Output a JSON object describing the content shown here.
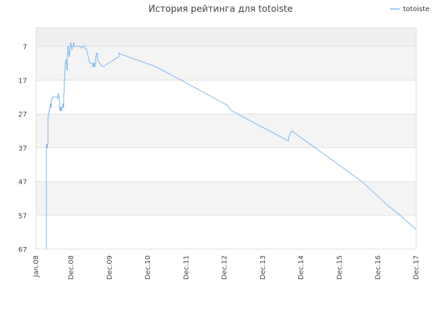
{
  "chart_data": {
    "type": "line",
    "title": "История рейтинга для totoiste",
    "xlabel": "",
    "ylabel": "",
    "y_inverted": true,
    "ylim": [
      67,
      1.5
    ],
    "xlim": [
      "2008-01-01",
      "2017-12-01"
    ],
    "y_ticks": [
      "7",
      "17",
      "27",
      "37",
      "47",
      "57",
      "67"
    ],
    "x_ticks": [
      {
        "label": "Jan.08",
        "date": "2008-01-01"
      },
      {
        "label": "Dec.08",
        "date": "2008-12-01"
      },
      {
        "label": "Dec.09",
        "date": "2009-12-01"
      },
      {
        "label": "Dec.10",
        "date": "2010-12-01"
      },
      {
        "label": "Dec.11",
        "date": "2011-12-01"
      },
      {
        "label": "Dec.12",
        "date": "2012-12-01"
      },
      {
        "label": "Dec.13",
        "date": "2013-12-01"
      },
      {
        "label": "Dec.14",
        "date": "2014-12-01"
      },
      {
        "label": "Dec.15",
        "date": "2015-12-01"
      },
      {
        "label": "Dec.16",
        "date": "2016-12-01"
      },
      {
        "label": "Dec.17",
        "date": "2017-12-01"
      }
    ],
    "legend_position": "top-right",
    "grid": true,
    "series": [
      {
        "name": "totoiste",
        "color": "#7cb5ec",
        "points": [
          [
            "2008-04-08",
            67
          ],
          [
            "2008-04-08",
            36
          ],
          [
            "2008-04-13",
            36
          ],
          [
            "2008-04-13",
            37
          ],
          [
            "2008-04-18",
            37
          ],
          [
            "2008-04-18",
            36
          ],
          [
            "2008-04-23",
            36
          ],
          [
            "2008-04-23",
            28
          ],
          [
            "2008-04-28",
            28
          ],
          [
            "2008-04-28",
            27
          ],
          [
            "2008-05-03",
            27
          ],
          [
            "2008-05-03",
            26
          ],
          [
            "2008-05-10",
            26
          ],
          [
            "2008-05-10",
            25
          ],
          [
            "2008-05-15",
            25
          ],
          [
            "2008-05-15",
            24
          ],
          [
            "2008-05-20",
            24
          ],
          [
            "2008-05-20",
            25
          ],
          [
            "2008-05-25",
            25
          ],
          [
            "2008-05-25",
            23
          ],
          [
            "2008-06-01",
            23
          ],
          [
            "2008-06-01",
            22
          ],
          [
            "2008-06-15",
            22
          ],
          [
            "2008-07-10",
            22
          ],
          [
            "2008-07-20",
            22
          ],
          [
            "2008-07-25",
            22.5
          ],
          [
            "2008-07-28",
            22
          ],
          [
            "2008-07-28",
            21
          ],
          [
            "2008-08-02",
            21
          ],
          [
            "2008-08-02",
            22
          ],
          [
            "2008-08-07",
            22
          ],
          [
            "2008-08-07",
            23
          ],
          [
            "2008-08-12",
            23
          ],
          [
            "2008-08-12",
            26
          ],
          [
            "2008-08-20",
            26
          ],
          [
            "2008-08-20",
            25
          ],
          [
            "2008-08-27",
            25
          ],
          [
            "2008-08-27",
            26
          ],
          [
            "2008-09-02",
            26
          ],
          [
            "2008-09-02",
            25
          ],
          [
            "2008-09-10",
            25
          ],
          [
            "2008-09-10",
            24
          ],
          [
            "2008-09-15",
            24
          ],
          [
            "2008-09-15",
            25
          ],
          [
            "2008-09-20",
            25
          ],
          [
            "2008-09-20",
            21
          ],
          [
            "2008-09-25",
            21
          ],
          [
            "2008-09-25",
            17
          ],
          [
            "2008-10-01",
            17
          ],
          [
            "2008-10-01",
            14
          ],
          [
            "2008-10-05",
            14
          ],
          [
            "2008-10-05",
            12
          ],
          [
            "2008-10-10",
            12
          ],
          [
            "2008-10-10",
            11
          ],
          [
            "2008-10-15",
            11
          ],
          [
            "2008-10-15",
            12
          ],
          [
            "2008-10-20",
            12
          ],
          [
            "2008-10-20",
            14
          ],
          [
            "2008-10-25",
            14
          ],
          [
            "2008-10-25",
            9
          ],
          [
            "2008-10-30",
            9
          ],
          [
            "2008-10-30",
            7
          ],
          [
            "2008-11-04",
            7
          ],
          [
            "2008-11-04",
            8
          ],
          [
            "2008-11-09",
            8
          ],
          [
            "2008-11-09",
            10
          ],
          [
            "2008-11-14",
            10
          ],
          [
            "2008-11-14",
            9
          ],
          [
            "2008-11-19",
            9
          ],
          [
            "2008-11-19",
            7
          ],
          [
            "2008-11-25",
            7
          ],
          [
            "2008-11-25",
            6
          ],
          [
            "2008-11-30",
            6
          ],
          [
            "2008-11-30",
            7
          ],
          [
            "2008-12-05",
            7
          ],
          [
            "2008-12-05",
            8
          ],
          [
            "2008-12-10",
            8
          ],
          [
            "2008-12-10",
            7
          ],
          [
            "2008-12-20",
            7
          ],
          [
            "2008-12-20",
            6
          ],
          [
            "2008-12-28",
            6
          ],
          [
            "2008-12-28",
            7
          ],
          [
            "2009-01-20",
            7
          ],
          [
            "2009-02-20",
            7
          ],
          [
            "2009-03-10",
            7.5
          ],
          [
            "2009-03-20",
            7
          ],
          [
            "2009-03-28",
            6.8
          ],
          [
            "2009-04-03",
            7
          ],
          [
            "2009-04-03",
            7.5
          ],
          [
            "2009-04-20",
            7.5
          ],
          [
            "2009-05-01",
            8.5
          ],
          [
            "2009-05-12",
            10
          ],
          [
            "2009-05-22",
            11.5
          ],
          [
            "2009-06-01",
            12
          ],
          [
            "2009-06-20",
            12
          ],
          [
            "2009-06-20",
            13
          ],
          [
            "2009-07-01",
            13
          ],
          [
            "2009-07-01",
            12
          ],
          [
            "2009-07-08",
            12
          ],
          [
            "2009-07-08",
            13
          ],
          [
            "2009-07-15",
            13
          ],
          [
            "2009-07-15",
            12
          ],
          [
            "2009-07-22",
            12
          ],
          [
            "2009-07-22",
            10
          ],
          [
            "2009-07-29",
            10
          ],
          [
            "2009-07-29",
            9
          ],
          [
            "2009-08-08",
            9
          ],
          [
            "2009-08-08",
            11
          ],
          [
            "2009-09-10",
            12.5
          ],
          [
            "2009-10-01",
            13
          ],
          [
            "2010-01-10",
            11
          ],
          [
            "2010-03-01",
            10
          ],
          [
            "2010-03-01",
            9
          ],
          [
            "2010-04-01",
            9.5
          ],
          [
            "2011-02-15",
            13
          ],
          [
            "2013-01-01",
            24.5
          ],
          [
            "2013-02-01",
            26
          ],
          [
            "2014-06-01",
            34
          ],
          [
            "2014-08-01",
            35
          ],
          [
            "2014-08-01",
            34
          ],
          [
            "2014-09-01",
            32
          ],
          [
            "2014-10-15",
            33
          ],
          [
            "2016-07-01",
            47
          ],
          [
            "2017-03-01",
            54
          ],
          [
            "2017-07-01",
            57
          ],
          [
            "2018-02-01",
            63
          ],
          [
            "2018-06-10",
            67
          ]
        ]
      }
    ]
  }
}
